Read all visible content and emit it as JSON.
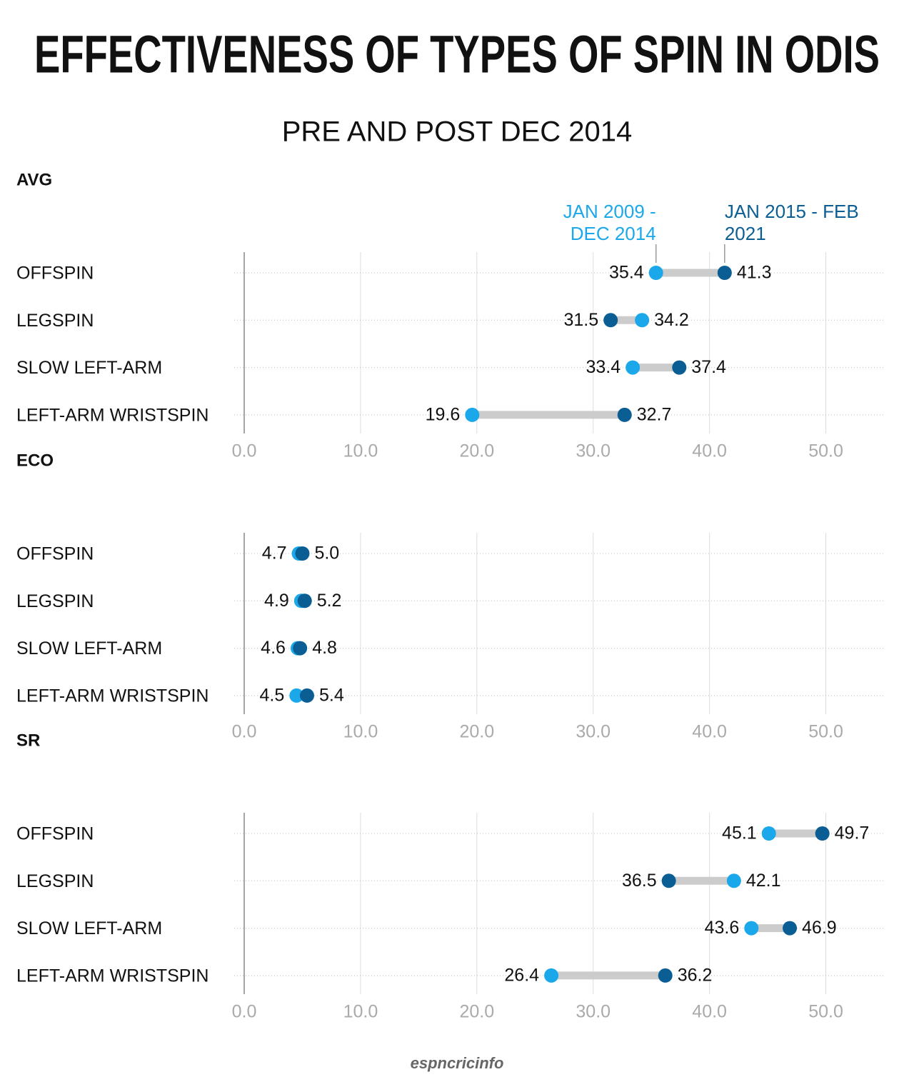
{
  "title": "EFFECTIVENESS OF TYPES OF SPIN IN ODIS",
  "subtitle": "PRE AND POST DEC 2014",
  "source": "espncricinfo",
  "chart_data": [
    {
      "type": "dumbbell",
      "title": "AVG",
      "categories": [
        "OFFSPIN",
        "LEGSPIN",
        "SLOW LEFT-ARM",
        "LEFT-ARM WRISTSPIN"
      ],
      "series": [
        {
          "name": "JAN 2009 - DEC 2014",
          "color": "#1ba8ea",
          "values": [
            35.4,
            34.2,
            33.4,
            19.6
          ]
        },
        {
          "name": "JAN 2015 - FEB 2021",
          "color": "#0b5e94",
          "values": [
            41.3,
            31.5,
            37.4,
            32.7
          ]
        }
      ],
      "xlim": [
        0,
        55
      ],
      "xticks": [
        {
          "value": 0,
          "label": "0.0"
        },
        {
          "value": 10,
          "label": "10.0"
        },
        {
          "value": 20,
          "label": "20.0"
        },
        {
          "value": 30,
          "label": "30.0"
        },
        {
          "value": 40,
          "label": "40.0"
        },
        {
          "value": 50,
          "label": "50.0"
        }
      ],
      "grid": true
    },
    {
      "type": "dumbbell",
      "title": "ECO",
      "categories": [
        "OFFSPIN",
        "LEGSPIN",
        "SLOW LEFT-ARM",
        "LEFT-ARM WRISTSPIN"
      ],
      "series": [
        {
          "color": "#1ba8ea",
          "values": [
            4.7,
            4.9,
            4.6,
            4.5
          ]
        },
        {
          "color": "#0b5e94",
          "values": [
            5,
            5.2,
            4.8,
            5.4
          ],
          "value_labels": [
            "5.0",
            "5.2",
            "4.8",
            "5.4"
          ]
        }
      ],
      "xlim": [
        0,
        55
      ],
      "xticks": [
        {
          "value": 0,
          "label": "0.0"
        },
        {
          "value": 10,
          "label": "10.0"
        },
        {
          "value": 20,
          "label": "20.0"
        },
        {
          "value": 30,
          "label": "30.0"
        },
        {
          "value": 40,
          "label": "40.0"
        },
        {
          "value": 50,
          "label": "50.0"
        }
      ],
      "grid": true
    },
    {
      "type": "dumbbell",
      "title": "SR",
      "categories": [
        "OFFSPIN",
        "LEGSPIN",
        "SLOW LEFT-ARM",
        "LEFT-ARM WRISTSPIN"
      ],
      "series": [
        {
          "color": "#1ba8ea",
          "values": [
            45.1,
            42.1,
            43.6,
            26.4
          ]
        },
        {
          "color": "#0b5e94",
          "values": [
            49.7,
            36.5,
            46.9,
            36.2
          ]
        }
      ],
      "xlim": [
        0,
        55
      ],
      "xticks": [
        {
          "value": 0,
          "label": "0.0"
        },
        {
          "value": 10,
          "label": "10.0"
        },
        {
          "value": 20,
          "label": "20.0"
        },
        {
          "value": 30,
          "label": "30.0"
        },
        {
          "value": 40,
          "label": "40.0"
        },
        {
          "value": 50,
          "label": "50.0"
        }
      ],
      "grid": true
    }
  ]
}
